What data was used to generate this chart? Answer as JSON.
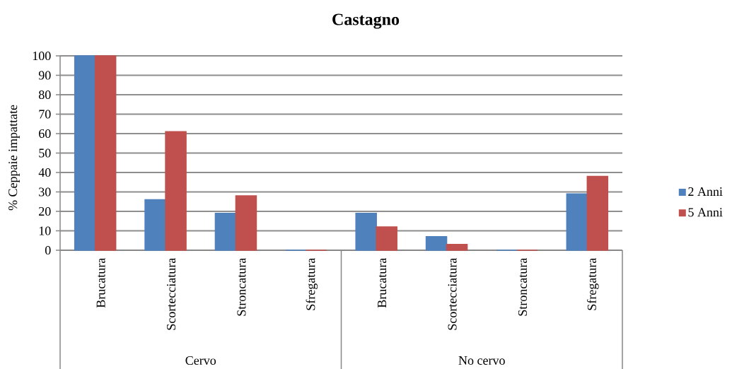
{
  "chart_data": {
    "type": "bar",
    "title": "Castagno",
    "ylabel": "% Ceppaie impattate",
    "categories": [
      "Brucatura",
      "Scortecciatura",
      "Stroncatura",
      "Sfregatura",
      "Brucatura",
      "Scortecciatura",
      "Stroncatura",
      "Sfregatura"
    ],
    "series": [
      {
        "name": "2 Anni",
        "color": "#4f81bd",
        "values": [
          100,
          26,
          19,
          0,
          19,
          7,
          0,
          29
        ]
      },
      {
        "name": "5 Anni",
        "color": "#c0504d",
        "values": [
          100,
          61,
          28,
          0,
          12,
          3,
          0,
          38
        ]
      }
    ],
    "annotations": [
      "Cervo",
      "No cervo"
    ],
    "ylim": [
      0,
      100
    ],
    "yticks": [
      0,
      10,
      20,
      30,
      40,
      50,
      60,
      70,
      80,
      90,
      100
    ],
    "grid": "y",
    "legend": "right"
  }
}
